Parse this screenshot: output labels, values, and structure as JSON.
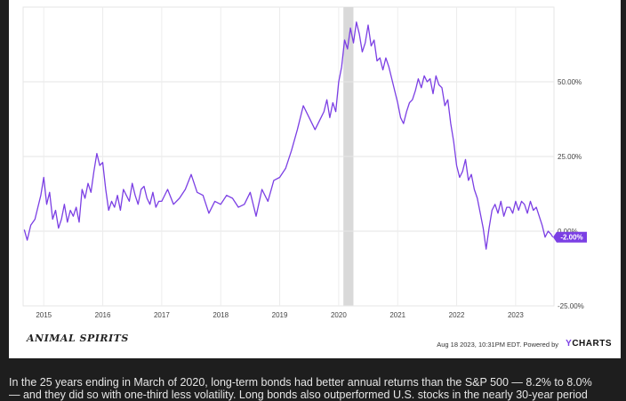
{
  "chart_data": {
    "type": "line",
    "title": "",
    "x_tick_labels": [
      "2015",
      "2016",
      "2017",
      "2018",
      "2019",
      "2020",
      "2021",
      "2022",
      "2023"
    ],
    "y_tick_labels": [
      "50.00%",
      "25.00%",
      "0.00%",
      "-25.00%"
    ],
    "y_ticks": [
      50,
      25,
      0,
      -25
    ],
    "ylim": [
      -25,
      75
    ],
    "xlim": [
      2014.65,
      2023.65
    ],
    "grid": true,
    "highlight_band": {
      "x_start": 2020.08,
      "x_end": 2020.25,
      "color": "#d9d9d9"
    },
    "last_value_label": "-2.00%",
    "series": [
      {
        "color": "#7b3fe4",
        "x": [
          2014.67,
          2014.72,
          2014.78,
          2014.85,
          2014.9,
          2014.95,
          2015.0,
          2015.05,
          2015.1,
          2015.15,
          2015.2,
          2015.25,
          2015.3,
          2015.35,
          2015.4,
          2015.45,
          2015.5,
          2015.55,
          2015.6,
          2015.65,
          2015.7,
          2015.75,
          2015.8,
          2015.85,
          2015.9,
          2015.95,
          2016.0,
          2016.05,
          2016.1,
          2016.15,
          2016.2,
          2016.25,
          2016.3,
          2016.35,
          2016.4,
          2016.45,
          2016.5,
          2016.55,
          2016.6,
          2016.65,
          2016.7,
          2016.75,
          2016.8,
          2016.85,
          2016.9,
          2016.95,
          2017.0,
          2017.1,
          2017.2,
          2017.3,
          2017.4,
          2017.5,
          2017.6,
          2017.7,
          2017.8,
          2017.9,
          2018.0,
          2018.1,
          2018.2,
          2018.3,
          2018.4,
          2018.5,
          2018.6,
          2018.7,
          2018.8,
          2018.9,
          2019.0,
          2019.1,
          2019.2,
          2019.3,
          2019.4,
          2019.5,
          2019.6,
          2019.7,
          2019.75,
          2019.8,
          2019.85,
          2019.9,
          2019.95,
          2020.0,
          2020.05,
          2020.1,
          2020.15,
          2020.2,
          2020.25,
          2020.3,
          2020.35,
          2020.4,
          2020.45,
          2020.5,
          2020.55,
          2020.6,
          2020.65,
          2020.7,
          2020.75,
          2020.8,
          2020.85,
          2020.9,
          2020.95,
          2021.0,
          2021.05,
          2021.1,
          2021.15,
          2021.2,
          2021.25,
          2021.3,
          2021.35,
          2021.4,
          2021.45,
          2021.5,
          2021.55,
          2021.6,
          2021.65,
          2021.7,
          2021.75,
          2021.8,
          2021.85,
          2021.9,
          2021.95,
          2022.0,
          2022.05,
          2022.1,
          2022.15,
          2022.2,
          2022.25,
          2022.3,
          2022.35,
          2022.4,
          2022.45,
          2022.5,
          2022.55,
          2022.6,
          2022.65,
          2022.7,
          2022.75,
          2022.8,
          2022.85,
          2022.9,
          2022.95,
          2023.0,
          2023.05,
          2023.1,
          2023.15,
          2023.2,
          2023.25,
          2023.3,
          2023.35,
          2023.4,
          2023.45,
          2023.5,
          2023.55,
          2023.6,
          2023.63
        ],
        "y": [
          0.5,
          -3,
          2,
          4,
          8,
          12,
          18,
          9,
          13,
          4,
          7,
          1,
          4,
          9,
          3,
          7,
          5,
          8,
          3,
          14,
          11,
          16,
          13,
          20,
          26,
          22,
          23,
          14,
          7,
          10,
          8,
          12,
          7,
          14,
          12,
          10,
          16,
          12,
          9,
          14,
          15,
          11,
          9,
          13,
          8,
          10,
          10,
          14,
          9,
          11,
          14,
          19,
          13,
          12,
          6,
          10,
          9,
          12,
          11,
          8,
          9,
          13,
          5,
          14,
          10,
          17,
          18,
          21,
          27,
          34,
          42,
          38,
          34,
          38,
          40,
          44,
          38,
          43,
          40,
          50,
          55,
          64,
          61,
          68,
          63,
          70,
          66,
          60,
          63,
          69,
          62,
          64,
          57,
          58,
          54,
          58,
          55,
          51,
          47,
          43,
          38,
          36,
          40,
          43,
          44,
          47,
          51,
          48,
          52,
          50,
          51,
          46,
          52,
          49,
          48,
          42,
          44,
          36,
          30,
          22,
          18,
          20,
          24,
          17,
          19,
          14,
          11,
          6,
          1,
          -6,
          1,
          7,
          9,
          6,
          10,
          5,
          8,
          8,
          6,
          10,
          7,
          10,
          9,
          6,
          10,
          7,
          8,
          5,
          2,
          -2,
          0,
          -1,
          -2
        ]
      }
    ]
  },
  "brand": {
    "text": "ANIMAL SPIRITS"
  },
  "footer": {
    "timestamp": "Aug 18 2023, 10:31PM EDT.",
    "powered_by": "Powered by",
    "ycharts_y": "Y",
    "ycharts_rest": "CHARTS"
  },
  "caption": {
    "line1": "In the 25 years ending in March of 2020, long-term bonds had better annual returns than the S&P 500 — 8.2% to 8.0%",
    "line2": "— and they did so with one-third less volatility. Long bonds also outperformed U.S. stocks in the nearly 30-year period"
  }
}
